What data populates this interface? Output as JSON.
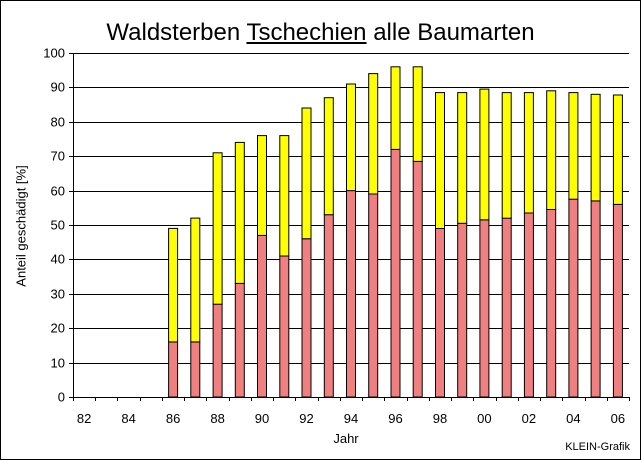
{
  "chart_data": {
    "type": "bar",
    "stacked": true,
    "title_parts": [
      "Waldsterben ",
      "Tschechien",
      " alle Baumarten"
    ],
    "xlabel": "Jahr",
    "ylabel": "Anteil geschädigt [%]",
    "ylim": [
      0,
      100
    ],
    "yticks": [
      0,
      10,
      20,
      30,
      40,
      50,
      60,
      70,
      80,
      90,
      100
    ],
    "grid": true,
    "categories": [
      "82",
      "83",
      "84",
      "85",
      "86",
      "87",
      "88",
      "89",
      "90",
      "91",
      "92",
      "93",
      "94",
      "95",
      "96",
      "97",
      "98",
      "99",
      "00",
      "01",
      "02",
      "03",
      "04",
      "05",
      "06"
    ],
    "tick_labels": [
      "82",
      "",
      "84",
      "",
      "86",
      "",
      "88",
      "",
      "90",
      "",
      "92",
      "",
      "94",
      "",
      "96",
      "",
      "98",
      "",
      "00",
      "",
      "02",
      "",
      "04",
      "",
      "06"
    ],
    "series": [
      {
        "color": "#f08080",
        "values": [
          null,
          null,
          null,
          null,
          16,
          16,
          27,
          33,
          47,
          41,
          46,
          53,
          60,
          59,
          72,
          68.5,
          49,
          50.5,
          51.5,
          52,
          53.5,
          54.5,
          57.5,
          57,
          56
        ]
      },
      {
        "color": "#ffff00",
        "values": [
          null,
          null,
          null,
          null,
          33,
          36,
          44,
          41,
          29,
          35,
          38,
          34,
          31,
          35,
          24,
          27.5,
          39.5,
          38,
          38,
          36.5,
          35,
          34.5,
          31,
          31,
          31.8
        ]
      }
    ],
    "source_note": "KLEIN-Grafik"
  }
}
